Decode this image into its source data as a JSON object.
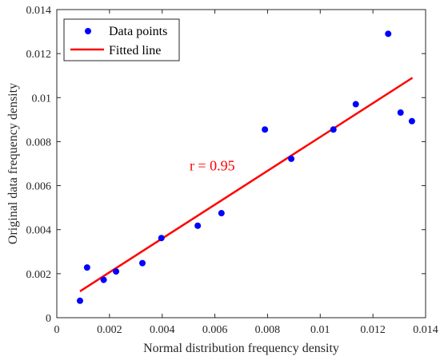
{
  "chart_data": {
    "type": "scatter",
    "xlabel": "Normal distribution frequency density",
    "ylabel": "Original data frequency density",
    "xlim": [
      0,
      0.014
    ],
    "ylim": [
      0,
      0.014
    ],
    "xticks": [
      0,
      0.002,
      0.004,
      0.006,
      0.008,
      0.01,
      0.012,
      0.014
    ],
    "yticks": [
      0,
      0.002,
      0.004,
      0.006,
      0.008,
      0.01,
      0.012,
      0.014
    ],
    "xtick_labels": [
      "0",
      "0.002",
      "0.004",
      "0.006",
      "0.008",
      "0.01",
      "0.012",
      "0.014"
    ],
    "ytick_labels": [
      "0",
      "0.002",
      "0.004",
      "0.006",
      "0.008",
      "0.01",
      "0.012",
      "0.014"
    ],
    "grid": false,
    "legend_position": "top-left",
    "series": [
      {
        "name": "Data points",
        "kind": "scatter",
        "color": "#0000ff",
        "x": [
          0.00088,
          0.00115,
          0.00178,
          0.00225,
          0.00325,
          0.00397,
          0.00535,
          0.00625,
          0.0079,
          0.0089,
          0.0105,
          0.01135,
          0.01258,
          0.01305,
          0.01348
        ],
        "y": [
          0.00077,
          0.00228,
          0.00172,
          0.0021,
          0.00248,
          0.00362,
          0.00418,
          0.00475,
          0.00855,
          0.00722,
          0.00855,
          0.0097,
          0.0129,
          0.00932,
          0.00893
        ]
      },
      {
        "name": "Fitted line",
        "kind": "line",
        "color": "#ff0000",
        "x": [
          0.00088,
          0.0135
        ],
        "y": [
          0.0012,
          0.0109
        ]
      }
    ],
    "annotations": [
      {
        "text": "r = 0.95",
        "x": 0.0059,
        "y": 0.0067,
        "color": "#ff0000"
      }
    ]
  }
}
